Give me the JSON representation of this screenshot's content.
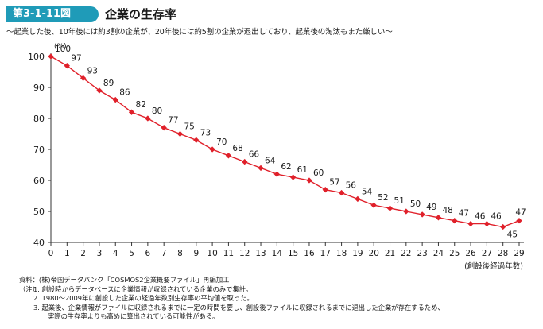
{
  "header": {
    "figure_number": "第3-1-11図",
    "title": "企業の生存率",
    "subtitle": "〜起業した後、10年後には約3割の企業が、20年後には約5割の企業が退出しており、起業後の淘汰もまた厳しい〜"
  },
  "chart_data": {
    "type": "line",
    "ylabel": "(%)",
    "xlabel": "(創設後経過年数)",
    "ylim": [
      40,
      100
    ],
    "yticks": [
      40,
      50,
      60,
      70,
      80,
      90,
      100
    ],
    "grid": false,
    "series": [
      {
        "color": "#e0202a",
        "x": [
          0,
          1,
          2,
          3,
          4,
          5,
          6,
          7,
          8,
          9,
          10,
          11,
          12,
          13,
          14,
          15,
          16,
          17,
          18,
          19,
          20,
          21,
          22,
          23,
          24,
          25,
          26,
          27,
          28,
          29
        ],
        "values": [
          100,
          97,
          93,
          89,
          86,
          82,
          80,
          77,
          75,
          73,
          70,
          68,
          66,
          64,
          62,
          61,
          60,
          57,
          56,
          54,
          52,
          51,
          50,
          49,
          48,
          47,
          46,
          46,
          45,
          47
        ]
      }
    ]
  },
  "notes": {
    "source": "資料：(株)帝国データバンク「COSMOS2企業概要ファイル」再編加工",
    "label": "（注）",
    "items": [
      "1.  創設時からデータベースに企業情報が収録されている企業のみで集計。",
      "2.  1980〜2009年に創設した企業の経過年数別生存率の平均値を取った。",
      "3.  起業後、企業情報がファイルに収録されるまでに一定の時間を要し、創設後ファイルに収録されるまでに退出した企業が存在するため、",
      "実際の生存率よりも高めに算出されている可能性がある。"
    ]
  }
}
